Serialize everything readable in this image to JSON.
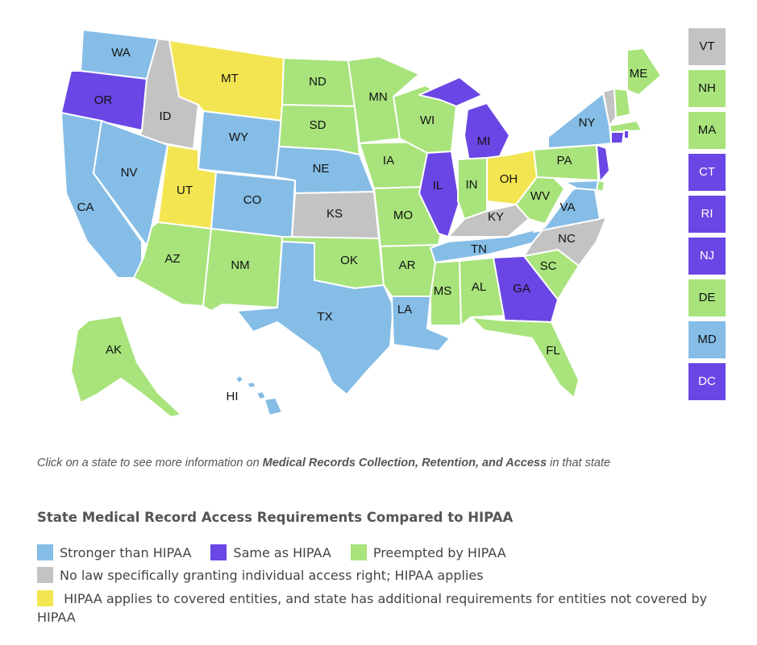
{
  "colors": {
    "stronger": "#85bde6",
    "same": "#6a46e4",
    "preempted": "#a8e37c",
    "no_law": "#c3c3c3",
    "additional": "#f3e552"
  },
  "states": [
    {
      "abbr": "WA",
      "category": "stronger"
    },
    {
      "abbr": "OR",
      "category": "same"
    },
    {
      "abbr": "CA",
      "category": "stronger"
    },
    {
      "abbr": "ID",
      "category": "no_law"
    },
    {
      "abbr": "NV",
      "category": "stronger"
    },
    {
      "abbr": "MT",
      "category": "additional"
    },
    {
      "abbr": "WY",
      "category": "stronger"
    },
    {
      "abbr": "UT",
      "category": "additional"
    },
    {
      "abbr": "CO",
      "category": "stronger"
    },
    {
      "abbr": "AZ",
      "category": "preempted"
    },
    {
      "abbr": "NM",
      "category": "preempted"
    },
    {
      "abbr": "ND",
      "category": "preempted"
    },
    {
      "abbr": "SD",
      "category": "preempted"
    },
    {
      "abbr": "NE",
      "category": "stronger"
    },
    {
      "abbr": "KS",
      "category": "no_law"
    },
    {
      "abbr": "OK",
      "category": "preempted"
    },
    {
      "abbr": "TX",
      "category": "stronger"
    },
    {
      "abbr": "MN",
      "category": "preempted"
    },
    {
      "abbr": "IA",
      "category": "preempted"
    },
    {
      "abbr": "MO",
      "category": "preempted"
    },
    {
      "abbr": "AR",
      "category": "preempted"
    },
    {
      "abbr": "LA",
      "category": "stronger"
    },
    {
      "abbr": "WI",
      "category": "preempted"
    },
    {
      "abbr": "IL",
      "category": "same"
    },
    {
      "abbr": "MI",
      "category": "same"
    },
    {
      "abbr": "IN",
      "category": "preempted"
    },
    {
      "abbr": "OH",
      "category": "additional"
    },
    {
      "abbr": "KY",
      "category": "no_law"
    },
    {
      "abbr": "TN",
      "category": "stronger"
    },
    {
      "abbr": "MS",
      "category": "preempted"
    },
    {
      "abbr": "AL",
      "category": "preempted"
    },
    {
      "abbr": "GA",
      "category": "same"
    },
    {
      "abbr": "FL",
      "category": "preempted"
    },
    {
      "abbr": "SC",
      "category": "preempted"
    },
    {
      "abbr": "NC",
      "category": "no_law"
    },
    {
      "abbr": "VA",
      "category": "stronger"
    },
    {
      "abbr": "WV",
      "category": "preempted"
    },
    {
      "abbr": "PA",
      "category": "preempted"
    },
    {
      "abbr": "NY",
      "category": "stronger"
    },
    {
      "abbr": "ME",
      "category": "preempted"
    },
    {
      "abbr": "NJ",
      "category": "same"
    },
    {
      "abbr": "AK",
      "category": "preempted"
    },
    {
      "abbr": "HI",
      "category": "stronger"
    }
  ],
  "small_states": [
    {
      "abbr": "VT",
      "category": "no_law"
    },
    {
      "abbr": "NH",
      "category": "preempted"
    },
    {
      "abbr": "MA",
      "category": "preempted"
    },
    {
      "abbr": "CT",
      "category": "same"
    },
    {
      "abbr": "RI",
      "category": "same"
    },
    {
      "abbr": "NJ",
      "category": "same"
    },
    {
      "abbr": "DE",
      "category": "preempted"
    },
    {
      "abbr": "MD",
      "category": "stronger"
    },
    {
      "abbr": "DC",
      "category": "same"
    }
  ],
  "instruction": {
    "prefix": "Click on a state to see more information on ",
    "bold": "Medical Records Collection, Retention, and Access",
    "suffix": " in that state"
  },
  "legend": {
    "title": "State Medical Record Access Requirements Compared to HIPAA",
    "items": [
      {
        "category": "stronger",
        "label": "Stronger than HIPAA"
      },
      {
        "category": "same",
        "label": "Same as HIPAA"
      },
      {
        "category": "preempted",
        "label": "Preempted by HIPAA"
      },
      {
        "category": "no_law",
        "label": "No law specifically granting individual access right; HIPAA applies"
      },
      {
        "category": "additional",
        "label": "HIPAA applies to covered entities, and state has additional requirements for entities not covered by HIPAA"
      }
    ]
  }
}
